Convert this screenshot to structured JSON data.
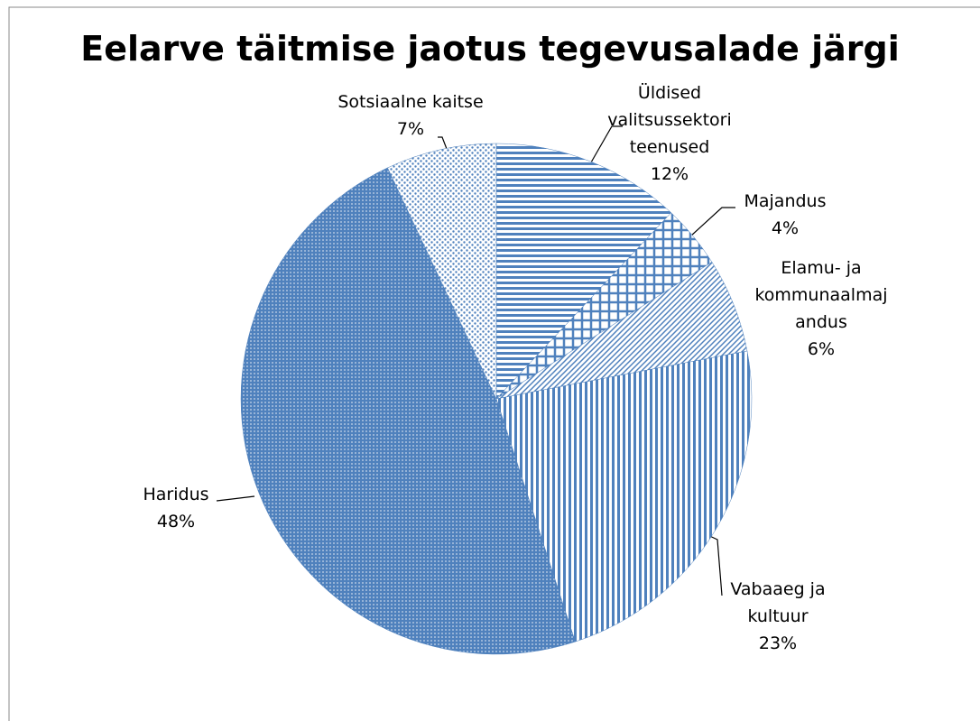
{
  "chart_data": {
    "type": "pie",
    "title": "Eelarve täitmise jaotus tegevusalade järgi",
    "categories": [
      "Üldised valitsussektori teenused",
      "Majandus",
      "Elamu- ja kommunaalmajandus",
      "Vabaaeg ja kultuur",
      "Haridus",
      "Sotsiaalne kaitse"
    ],
    "values": [
      12,
      4,
      6,
      23,
      48,
      7
    ],
    "value_labels": [
      "12%",
      "4%",
      "6%",
      "23%",
      "48%",
      "7%"
    ],
    "color": "#4f81bd"
  }
}
